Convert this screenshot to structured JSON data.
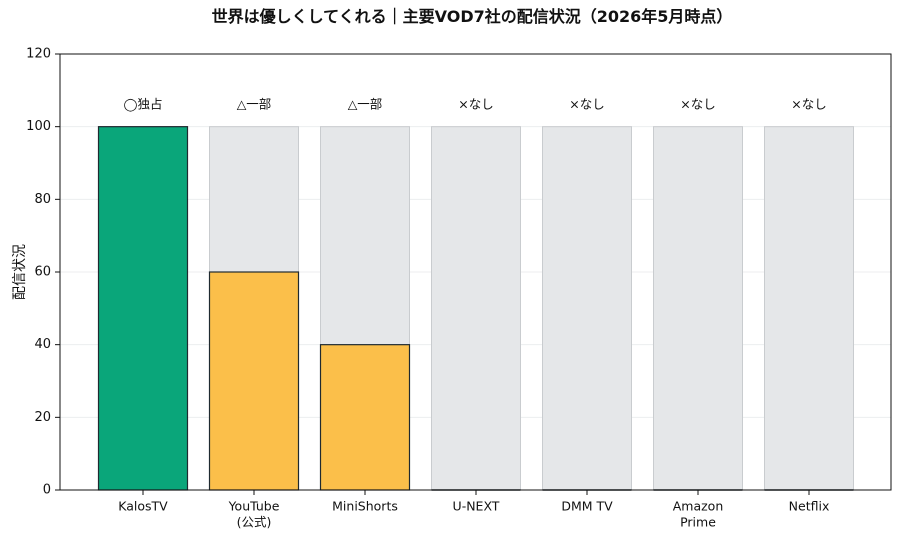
{
  "chart_data": {
    "type": "bar",
    "title": "世界は優しくしてくれる｜主要VOD7社の配信状況（2026年5月時点）",
    "ylabel": "配信状況",
    "xlabel": "",
    "ylim": [
      0,
      120
    ],
    "yticks": [
      0,
      20,
      40,
      60,
      80,
      100,
      120
    ],
    "grid": true,
    "categories": [
      [
        "KalosTV"
      ],
      [
        "YouTube",
        "(公式)"
      ],
      [
        "MiniShorts"
      ],
      [
        "U-NEXT"
      ],
      [
        "DMM TV"
      ],
      [
        "Amazon",
        "Prime"
      ],
      [
        "Netflix"
      ]
    ],
    "values": [
      100,
      60,
      40,
      0,
      0,
      0,
      0
    ],
    "background_value": 100,
    "status_labels": [
      "◯独占",
      "△一部",
      "△一部",
      "×なし",
      "×なし",
      "×なし",
      "×なし"
    ],
    "colors": {
      "exclusive": "#0aa67a",
      "partial": "#fbbf4a",
      "background": "#e5e7e9",
      "background_edge": "#c9cccf",
      "edge": "#1f2a30"
    },
    "bar_colors": [
      "exclusive",
      "partial",
      "partial",
      "none",
      "none",
      "none",
      "none"
    ]
  }
}
